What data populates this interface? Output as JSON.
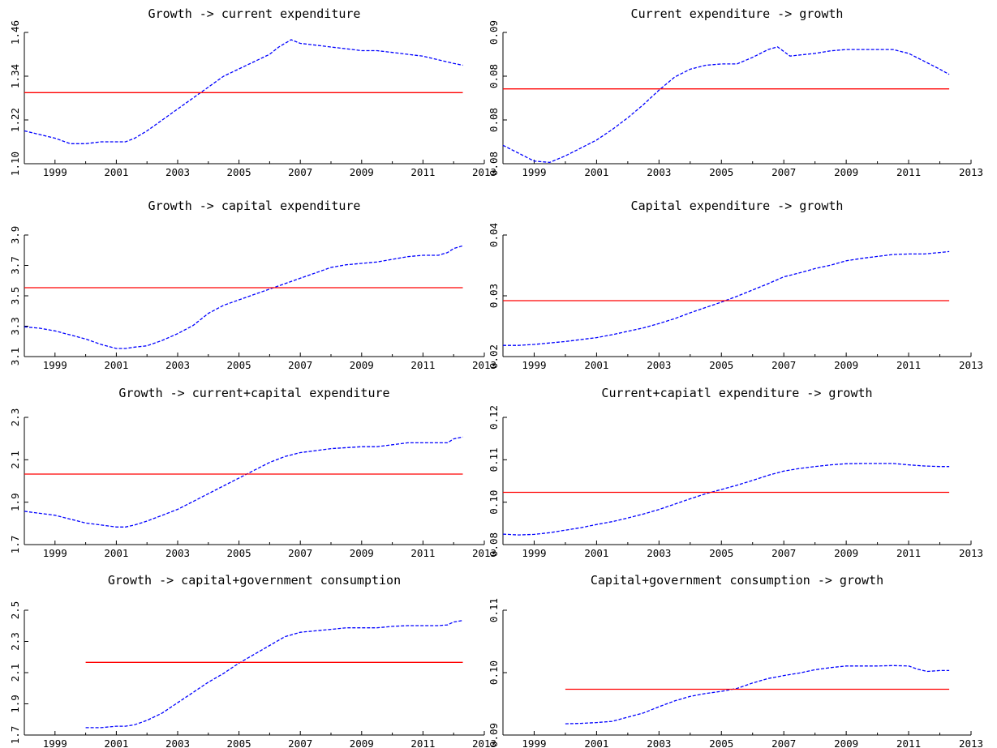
{
  "chart_data": [
    {
      "type": "line",
      "title": "Growth -> current expenditure",
      "xlim": [
        1998,
        2013
      ],
      "ylim": [
        1.1,
        1.46
      ],
      "xticks": [
        "1999",
        "2001",
        "2003",
        "2005",
        "2007",
        "2009",
        "2011",
        "2013"
      ],
      "yticks": [
        "1.10",
        "1.22",
        "1.34",
        "1.46"
      ],
      "grid": false,
      "series": [
        {
          "style": "dashed",
          "color": "#0000ff",
          "x": [
            1998.0,
            1998.5,
            1999.0,
            1999.5,
            2000.0,
            2000.5,
            2001.0,
            2001.3,
            2001.6,
            2002.0,
            2002.5,
            2003.0,
            2003.5,
            2004.0,
            2004.5,
            2005.0,
            2005.5,
            2006.0,
            2006.3,
            2006.7,
            2007.0,
            2007.5,
            2008.0,
            2008.5,
            2009.0,
            2009.5,
            2010.0,
            2010.5,
            2011.0,
            2011.5,
            2012.0,
            2012.3
          ],
          "y": [
            1.19,
            1.18,
            1.17,
            1.155,
            1.155,
            1.16,
            1.16,
            1.16,
            1.17,
            1.19,
            1.22,
            1.25,
            1.28,
            1.31,
            1.34,
            1.36,
            1.38,
            1.4,
            1.42,
            1.44,
            1.43,
            1.425,
            1.42,
            1.415,
            1.41,
            1.41,
            1.405,
            1.4,
            1.395,
            1.385,
            1.375,
            1.37
          ]
        },
        {
          "style": "solid",
          "color": "#ff0000",
          "x": [
            1998,
            2012.3
          ],
          "y": [
            1.295,
            1.295
          ]
        }
      ]
    },
    {
      "type": "line",
      "title": "Current expenditure -> growth",
      "xlim": [
        1998,
        2013
      ],
      "ylim": [
        0.08,
        0.09
      ],
      "xticks": [
        "1999",
        "2001",
        "2003",
        "2005",
        "2007",
        "2009",
        "2011",
        "2013"
      ],
      "yticks": [
        "0.08",
        "0.08",
        "0.08",
        "0.09"
      ],
      "grid": false,
      "series": [
        {
          "style": "dashed",
          "color": "#0000ff",
          "x": [
            1998.0,
            1998.5,
            1999.0,
            1999.5,
            2000.0,
            2000.5,
            2001.0,
            2001.5,
            2002.0,
            2002.5,
            2003.0,
            2003.5,
            2004.0,
            2004.5,
            2005.0,
            2005.5,
            2006.0,
            2006.5,
            2006.8,
            2007.2,
            2007.6,
            2008.0,
            2008.5,
            2009.0,
            2009.5,
            2010.0,
            2010.5,
            2011.0,
            2011.5,
            2012.0,
            2012.3
          ],
          "y": [
            0.0814,
            0.0808,
            0.0802,
            0.0801,
            0.0806,
            0.0812,
            0.0818,
            0.0826,
            0.0835,
            0.0845,
            0.0856,
            0.0866,
            0.0872,
            0.0875,
            0.0876,
            0.0876,
            0.0881,
            0.0887,
            0.0889,
            0.0882,
            0.0883,
            0.0884,
            0.0886,
            0.0887,
            0.0887,
            0.0887,
            0.0887,
            0.0884,
            0.0878,
            0.0872,
            0.0868
          ]
        },
        {
          "style": "solid",
          "color": "#ff0000",
          "x": [
            1998,
            2012.3
          ],
          "y": [
            0.0857,
            0.0857
          ]
        }
      ]
    },
    {
      "type": "line",
      "title": "Growth -> capital expenditure",
      "xlim": [
        1998,
        2013
      ],
      "ylim": [
        3.1,
        4.0
      ],
      "xticks": [
        "1999",
        "2001",
        "2003",
        "2005",
        "2007",
        "2009",
        "2011",
        "2013"
      ],
      "yticks": [
        "3.1",
        "3.3",
        "3.5",
        "3.7",
        "3.9"
      ],
      "grid": false,
      "series": [
        {
          "style": "dashed",
          "color": "#0000ff",
          "x": [
            1998.0,
            1998.5,
            1999.0,
            1999.5,
            2000.0,
            2000.5,
            2001.0,
            2001.3,
            2001.6,
            2002.0,
            2002.5,
            2003.0,
            2003.5,
            2004.0,
            2004.5,
            2005.0,
            2005.5,
            2006.0,
            2006.5,
            2007.0,
            2007.5,
            2008.0,
            2008.5,
            2009.0,
            2009.5,
            2010.0,
            2010.5,
            2011.0,
            2011.5,
            2011.8,
            2012.0,
            2012.3
          ],
          "y": [
            3.32,
            3.31,
            3.29,
            3.26,
            3.23,
            3.19,
            3.16,
            3.16,
            3.17,
            3.18,
            3.22,
            3.27,
            3.33,
            3.42,
            3.48,
            3.52,
            3.56,
            3.6,
            3.64,
            3.68,
            3.72,
            3.76,
            3.78,
            3.79,
            3.8,
            3.82,
            3.84,
            3.85,
            3.85,
            3.87,
            3.9,
            3.92
          ]
        },
        {
          "style": "solid",
          "color": "#ff0000",
          "x": [
            1998,
            2012.3
          ],
          "y": [
            3.61,
            3.61
          ]
        }
      ]
    },
    {
      "type": "line",
      "title": "Capital expenditure -> growth",
      "xlim": [
        1998,
        2013
      ],
      "ylim": [
        0.02,
        0.045
      ],
      "xticks": [
        "1999",
        "2001",
        "2003",
        "2005",
        "2007",
        "2009",
        "2011",
        "2013"
      ],
      "yticks": [
        "0.02",
        "0.03",
        "0.04"
      ],
      "grid": false,
      "series": [
        {
          "style": "dashed",
          "color": "#0000ff",
          "x": [
            1998.0,
            1998.5,
            1999.0,
            1999.5,
            2000.0,
            2000.5,
            2001.0,
            2001.5,
            2002.0,
            2002.5,
            2003.0,
            2003.5,
            2004.0,
            2004.5,
            2005.0,
            2005.5,
            2006.0,
            2006.5,
            2007.0,
            2007.5,
            2008.0,
            2008.5,
            2009.0,
            2009.5,
            2010.0,
            2010.5,
            2011.0,
            2011.5,
            2012.0,
            2012.3
          ],
          "y": [
            0.0223,
            0.0223,
            0.0225,
            0.0228,
            0.0231,
            0.0235,
            0.0239,
            0.0245,
            0.0252,
            0.0259,
            0.0268,
            0.0278,
            0.029,
            0.0301,
            0.0312,
            0.0324,
            0.0337,
            0.035,
            0.0364,
            0.0372,
            0.0381,
            0.0388,
            0.0397,
            0.0402,
            0.0406,
            0.041,
            0.0411,
            0.0411,
            0.0414,
            0.0416
          ]
        },
        {
          "style": "solid",
          "color": "#ff0000",
          "x": [
            1998,
            2012.3
          ],
          "y": [
            0.0315,
            0.0315
          ]
        }
      ]
    },
    {
      "type": "line",
      "title": "Growth -> current+capital expenditure",
      "xlim": [
        1998,
        2013
      ],
      "ylim": [
        1.7,
        2.35
      ],
      "xticks": [
        "1999",
        "2001",
        "2003",
        "2005",
        "2007",
        "2009",
        "2011",
        "2013"
      ],
      "yticks": [
        "1.7",
        "1.9",
        "2.1",
        "2.3"
      ],
      "grid": false,
      "series": [
        {
          "style": "dashed",
          "color": "#0000ff",
          "x": [
            1998.0,
            1998.5,
            1999.0,
            1999.5,
            2000.0,
            2000.5,
            2001.0,
            2001.3,
            2001.6,
            2002.0,
            2002.5,
            2003.0,
            2003.5,
            2004.0,
            2004.5,
            2005.0,
            2005.5,
            2006.0,
            2006.5,
            2007.0,
            2007.5,
            2008.0,
            2008.5,
            2009.0,
            2009.5,
            2010.0,
            2010.5,
            2011.0,
            2011.5,
            2011.8,
            2012.0,
            2012.3
          ],
          "y": [
            1.87,
            1.86,
            1.85,
            1.83,
            1.81,
            1.8,
            1.79,
            1.79,
            1.8,
            1.82,
            1.85,
            1.88,
            1.92,
            1.96,
            2.0,
            2.04,
            2.08,
            2.12,
            2.15,
            2.17,
            2.18,
            2.19,
            2.195,
            2.2,
            2.2,
            2.21,
            2.22,
            2.22,
            2.22,
            2.22,
            2.24,
            2.25
          ]
        },
        {
          "style": "solid",
          "color": "#ff0000",
          "x": [
            1998,
            2012.3
          ],
          "y": [
            2.06,
            2.06
          ]
        }
      ]
    },
    {
      "type": "line",
      "title": "Current+capiatl expenditure -> growth",
      "xlim": [
        1998,
        2013
      ],
      "ylim": [
        0.08,
        0.125
      ],
      "xticks": [
        "1999",
        "2001",
        "2003",
        "2005",
        "2007",
        "2009",
        "2011",
        "2013"
      ],
      "yticks": [
        "0.08",
        "0.10",
        "0.11",
        "0.12"
      ],
      "grid": false,
      "series": [
        {
          "style": "dashed",
          "color": "#0000ff",
          "x": [
            1998.0,
            1998.5,
            1999.0,
            1999.5,
            2000.0,
            2000.5,
            2001.0,
            2001.5,
            2002.0,
            2002.5,
            2003.0,
            2003.5,
            2004.0,
            2004.5,
            2005.0,
            2005.5,
            2006.0,
            2006.5,
            2007.0,
            2007.5,
            2008.0,
            2008.5,
            2009.0,
            2009.5,
            2010.0,
            2010.5,
            2011.0,
            2011.5,
            2012.0,
            2012.3
          ],
          "y": [
            0.0837,
            0.0834,
            0.0836,
            0.0842,
            0.0851,
            0.086,
            0.0871,
            0.0881,
            0.0894,
            0.0908,
            0.0924,
            0.0943,
            0.0962,
            0.098,
            0.0995,
            0.101,
            0.1027,
            0.1045,
            0.106,
            0.1069,
            0.1076,
            0.1082,
            0.1086,
            0.1087,
            0.1087,
            0.1087,
            0.1082,
            0.1078,
            0.1076,
            0.1076
          ]
        },
        {
          "style": "solid",
          "color": "#ff0000",
          "x": [
            1998,
            2012.3
          ],
          "y": [
            0.0985,
            0.0985
          ]
        }
      ]
    },
    {
      "type": "line",
      "title": "Growth -> capital+government consumption",
      "xlim": [
        1998,
        2013
      ],
      "ylim": [
        1.7,
        2.55
      ],
      "xticks": [
        "1999",
        "2001",
        "2003",
        "2005",
        "2007",
        "2009",
        "2011",
        "2013"
      ],
      "yticks": [
        "1.7",
        "1.9",
        "2.1",
        "2.3",
        "2.5"
      ],
      "grid": false,
      "series": [
        {
          "style": "dashed",
          "color": "#0000ff",
          "x": [
            2000.0,
            2000.5,
            2001.0,
            2001.3,
            2001.6,
            2002.0,
            2002.5,
            2003.0,
            2003.5,
            2004.0,
            2004.5,
            2005.0,
            2005.5,
            2006.0,
            2006.5,
            2007.0,
            2007.5,
            2008.0,
            2008.5,
            2009.0,
            2009.5,
            2010.0,
            2010.5,
            2011.0,
            2011.5,
            2011.8,
            2012.0,
            2012.3
          ],
          "y": [
            1.75,
            1.75,
            1.76,
            1.76,
            1.77,
            1.8,
            1.85,
            1.92,
            1.99,
            2.06,
            2.12,
            2.19,
            2.25,
            2.31,
            2.37,
            2.4,
            2.41,
            2.42,
            2.43,
            2.43,
            2.43,
            2.44,
            2.445,
            2.445,
            2.445,
            2.45,
            2.47,
            2.48
          ]
        },
        {
          "style": "solid",
          "color": "#ff0000",
          "x": [
            2000,
            2012.3
          ],
          "y": [
            2.195,
            2.195
          ]
        }
      ]
    },
    {
      "type": "line",
      "title": "Capital+government consumption -> growth",
      "xlim": [
        1998,
        2013
      ],
      "ylim": [
        0.085,
        0.115
      ],
      "xticks": [
        "1999",
        "2001",
        "2003",
        "2005",
        "2007",
        "2009",
        "2011",
        "2013"
      ],
      "yticks": [
        "0.09",
        "0.10",
        "0.11"
      ],
      "grid": false,
      "series": [
        {
          "style": "dashed",
          "color": "#0000ff",
          "x": [
            2000.0,
            2000.5,
            2001.0,
            2001.5,
            2002.0,
            2002.5,
            2003.0,
            2003.5,
            2004.0,
            2004.5,
            2005.0,
            2005.5,
            2006.0,
            2006.5,
            2007.0,
            2007.5,
            2008.0,
            2008.5,
            2009.0,
            2009.5,
            2010.0,
            2010.5,
            2011.0,
            2011.3,
            2011.6,
            2012.0,
            2012.3
          ],
          "y": [
            0.0877,
            0.0878,
            0.088,
            0.0883,
            0.0893,
            0.0903,
            0.0918,
            0.0932,
            0.0943,
            0.095,
            0.0955,
            0.0962,
            0.0975,
            0.0986,
            0.0993,
            0.0999,
            0.1007,
            0.1012,
            0.1016,
            0.1016,
            0.1016,
            0.1017,
            0.1016,
            0.1008,
            0.1003,
            0.1005,
            0.1005
          ]
        },
        {
          "style": "solid",
          "color": "#ff0000",
          "x": [
            2000,
            2012.3
          ],
          "y": [
            0.096,
            0.096
          ]
        }
      ]
    }
  ]
}
